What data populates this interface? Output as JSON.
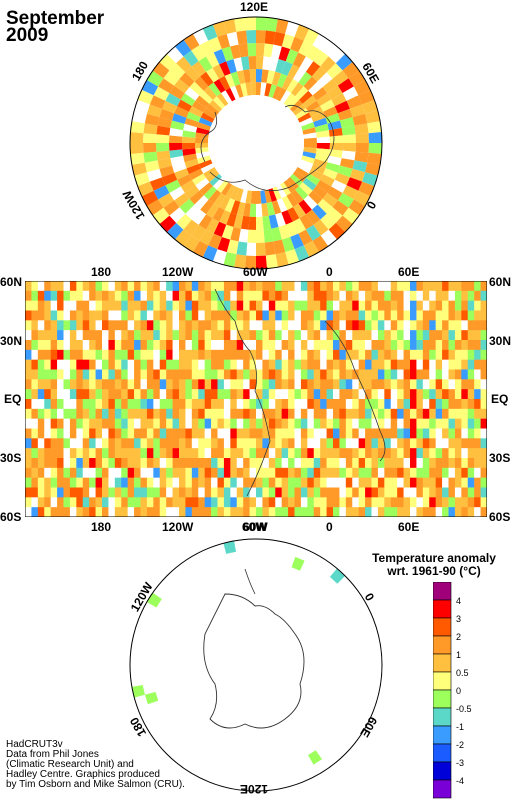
{
  "title": {
    "month": "September",
    "year": "2009"
  },
  "north_map": {
    "labels": {
      "top": "120E",
      "right": "60E",
      "bottom_right": "0",
      "left": "180",
      "bottom_left": "120W"
    }
  },
  "world_map": {
    "lat_labels": [
      "60N",
      "30N",
      "EQ",
      "30S",
      "60S"
    ],
    "lon_labels": [
      "180",
      "120W",
      "60W",
      "0",
      "60E"
    ]
  },
  "south_map": {
    "labels": {
      "top": "60W",
      "left": "120W",
      "right": "0",
      "bottom": "120E",
      "bottom_left": "180",
      "bottom_right": "60E"
    }
  },
  "legend": {
    "title_line1": "Temperature anomaly",
    "title_line2": "wrt. 1961-90  (°C)",
    "levels": [
      {
        "label": "4",
        "color": "#a0007a"
      },
      {
        "label": "3",
        "color": "#ff0000"
      },
      {
        "label": "2",
        "color": "#ff5a00"
      },
      {
        "label": "1",
        "color": "#ff9a28"
      },
      {
        "label": "0.5",
        "color": "#ffc040"
      },
      {
        "label": "0",
        "color": "#ffff7c"
      },
      {
        "label": "-0.5",
        "color": "#9cff5c"
      },
      {
        "label": "-1",
        "color": "#5cd8c8"
      },
      {
        "label": "-2",
        "color": "#3a9cff"
      },
      {
        "label": "-3",
        "color": "#1a5cff"
      },
      {
        "label": "-4",
        "color": "#0000d8"
      },
      {
        "label": "",
        "color": "#7a00d8"
      }
    ]
  },
  "credits": {
    "line1": "HadCRUT3v",
    "line2": "Data from Phil Jones",
    "line3": "(Climatic Research Unit) and",
    "line4": "Hadley Centre.  Graphics produced",
    "line5": "by Tim Osborn and Mike Salmon (CRU)."
  }
}
